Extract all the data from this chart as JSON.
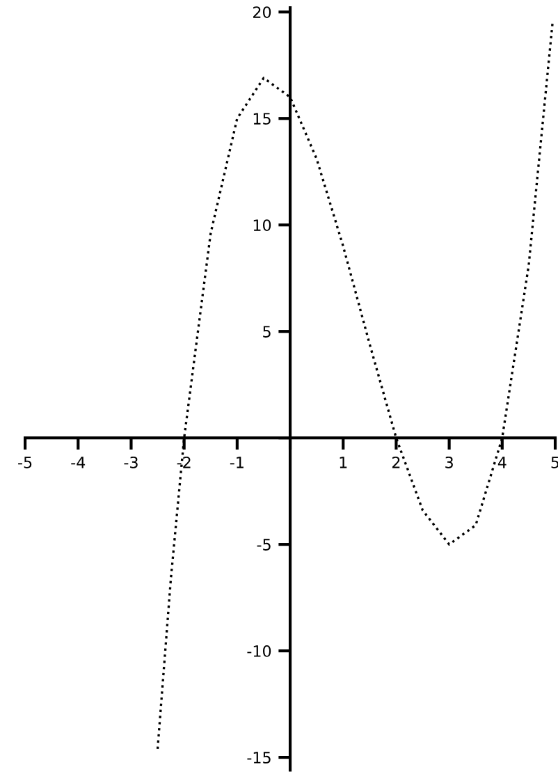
{
  "chart_data": {
    "type": "line",
    "line_style": "dotted",
    "marker": "none",
    "grid": false,
    "x": [
      -2.5,
      -2.25,
      -2,
      -1.5,
      -1,
      -0.5,
      0,
      0.5,
      1,
      1.5,
      2,
      2.5,
      3,
      3.5,
      4,
      4.5,
      4.95
    ],
    "series": [
      {
        "color": "#000000",
        "values": [
          -14.6,
          -6.6,
          0,
          9.6,
          15,
          16.9,
          16,
          13.1,
          9,
          4.4,
          0,
          -3.4,
          -5,
          -4.1,
          0,
          8.1,
          19.5
        ]
      }
    ],
    "xlim": [
      -5,
      5
    ],
    "ylim": [
      -15.6,
      20.2
    ],
    "xticks": [
      -5,
      -4,
      -3,
      -2,
      -1,
      {
        "value": 0,
        "label": null
      },
      1,
      2,
      3,
      4,
      5
    ],
    "yticks": [
      -15,
      -10,
      -5,
      {
        "value": 0,
        "label": null
      },
      5,
      10,
      15,
      20
    ]
  }
}
